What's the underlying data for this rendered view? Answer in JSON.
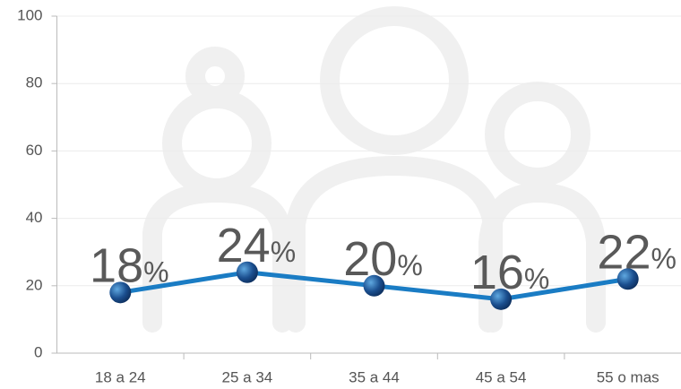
{
  "chart_data": {
    "type": "line",
    "categories": [
      "18 a 24",
      "25 a 34",
      "35 a 44",
      "45 a 54",
      "55 o mas"
    ],
    "values": [
      18,
      24,
      20,
      16,
      22
    ],
    "value_labels": [
      "18%",
      "24%",
      "20%",
      "16%",
      "22%"
    ],
    "color": "#1a7cc4",
    "ylim": [
      0,
      100
    ],
    "yticks": [
      0,
      20,
      40,
      60,
      80,
      100
    ],
    "grid": true
  }
}
